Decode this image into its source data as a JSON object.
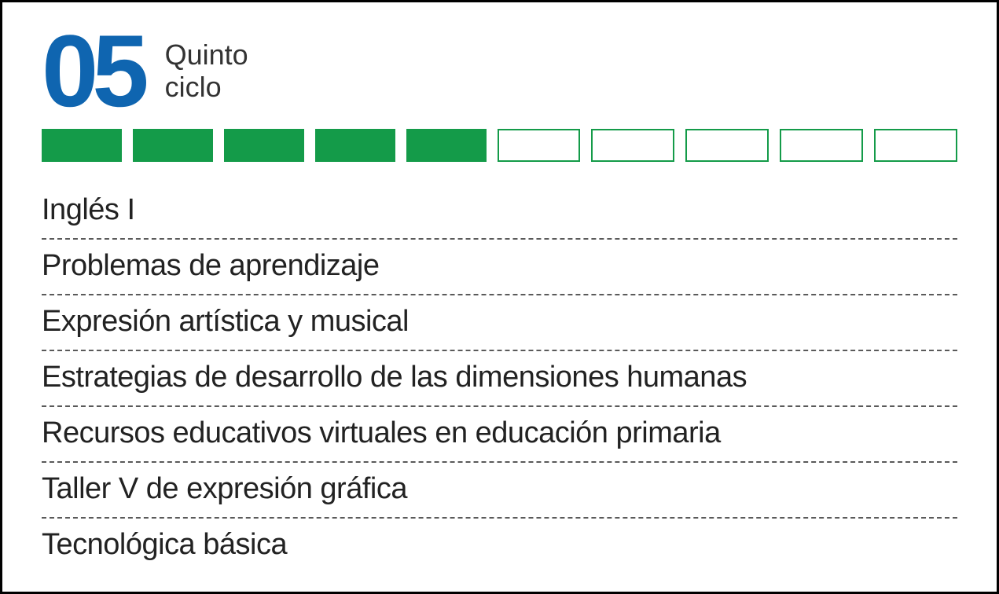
{
  "cycle": {
    "number": "05",
    "label_line1": "Quinto",
    "label_line2": "ciclo",
    "number_color": "#0f65b0",
    "label_color": "#333333"
  },
  "progress": {
    "total_blocks": 10,
    "filled_blocks": 5,
    "filled_color": "#149b49",
    "empty_border_color": "#149b49",
    "block_height": 42,
    "gap": 14
  },
  "courses": [
    "Inglés I",
    "Problemas de aprendizaje",
    "Expresión artística y musical",
    "Estrategias de desarrollo de las dimensiones humanas",
    "Recursos educativos virtuales en educación primaria",
    "Taller V de expresión gráfica",
    "Tecnológica básica"
  ],
  "course_text_color": "#222222",
  "divider_color": "#5a5a5a"
}
